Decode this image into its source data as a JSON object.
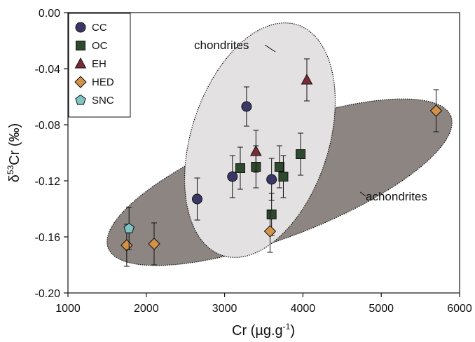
{
  "chart_data": {
    "type": "scatter",
    "title": "",
    "xlabel": "Cr (µg.g",
    "xlabel_sup": "-1",
    "xlabel_close": ")",
    "ylabel_pre": "δ",
    "ylabel_sup": "53",
    "ylabel_main": "Cr (‰)",
    "xlim": [
      1000,
      6000
    ],
    "ylim": [
      -0.2,
      0.0
    ],
    "xticks": [
      "1000",
      "2000",
      "3000",
      "4000",
      "5000",
      "6000"
    ],
    "yticks": [
      "0.00",
      "-0.04",
      "-0.08",
      "-0.12",
      "-0.16",
      "-0.20"
    ],
    "grid": false,
    "legend_position": "top-left",
    "annotations": [
      {
        "id": "chondrites",
        "text": "chondrites"
      },
      {
        "id": "achondrites",
        "text": "achondrites"
      }
    ],
    "series": [
      {
        "name": "CC",
        "marker": "circle",
        "color": "#3a3767",
        "points": [
          {
            "x": 2650,
            "y": -0.133,
            "err": 0.015
          },
          {
            "x": 3100,
            "y": -0.117,
            "err": 0.015
          },
          {
            "x": 3280,
            "y": -0.067,
            "err": 0.014
          },
          {
            "x": 3600,
            "y": -0.119,
            "err": 0.015
          }
        ]
      },
      {
        "name": "OC",
        "marker": "square",
        "color": "#2e4a2e",
        "points": [
          {
            "x": 3200,
            "y": -0.111,
            "err": 0.015
          },
          {
            "x": 3400,
            "y": -0.11,
            "err": 0.015
          },
          {
            "x": 3600,
            "y": -0.144,
            "err": 0.015
          },
          {
            "x": 3700,
            "y": -0.11,
            "err": 0.015
          },
          {
            "x": 3750,
            "y": -0.117,
            "err": 0.015
          },
          {
            "x": 3970,
            "y": -0.101,
            "err": 0.015
          }
        ]
      },
      {
        "name": "EH",
        "marker": "triangle",
        "color": "#7a2b35",
        "points": [
          {
            "x": 3400,
            "y": -0.099,
            "err": 0.015
          },
          {
            "x": 4050,
            "y": -0.048,
            "err": 0.015
          }
        ]
      },
      {
        "name": "HED",
        "marker": "diamond",
        "color": "#d4914a",
        "points": [
          {
            "x": 1750,
            "y": -0.166,
            "err": 0.015
          },
          {
            "x": 2100,
            "y": -0.165,
            "err": 0.015
          },
          {
            "x": 3580,
            "y": -0.156,
            "err": 0.015
          },
          {
            "x": 5700,
            "y": -0.07,
            "err": 0.015
          }
        ]
      },
      {
        "name": "SNC",
        "marker": "pentagon",
        "color": "#7fc4c4",
        "points": [
          {
            "x": 1780,
            "y": -0.154,
            "err": 0.015
          }
        ]
      }
    ],
    "fields": [
      {
        "id": "achondrites-field",
        "color": "#8c8581"
      },
      {
        "id": "chondrites-field",
        "color": "#e3e1e1"
      }
    ]
  }
}
